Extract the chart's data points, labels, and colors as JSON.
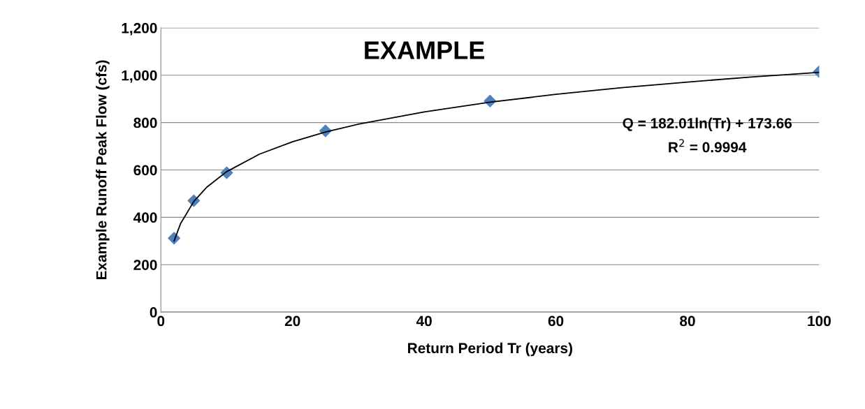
{
  "chart_data": {
    "type": "scatter",
    "title": "EXAMPLE",
    "xlabel": "Return Period Tr (years)",
    "ylabel": "Example Runoff Peak Flow (cfs)",
    "xlim": [
      0,
      100
    ],
    "xticks": [
      0,
      20,
      40,
      60,
      80,
      100
    ],
    "ylim": [
      0,
      1200
    ],
    "yticks": [
      0,
      200,
      400,
      600,
      800,
      {
        "value": 1000,
        "label": "1,000"
      },
      {
        "value": 1200,
        "label": "1,200"
      }
    ],
    "grid": "y",
    "legend": false,
    "series": [
      {
        "type": "line",
        "color": "#000000",
        "marker": "none",
        "x": [
          2,
          3,
          5,
          7,
          10,
          15,
          20,
          25,
          30,
          40,
          50,
          60,
          70,
          80,
          90,
          100
        ],
        "values": [
          300,
          374,
          467,
          528,
          593,
          667,
          719,
          760,
          793,
          845,
          886,
          919,
          947,
          971,
          993,
          1012
        ]
      },
      {
        "color": "#4f81bd",
        "marker": "diamond",
        "x": [
          2,
          5,
          10,
          25,
          50,
          100
        ],
        "values": [
          312,
          470,
          588,
          765,
          891,
          1015
        ]
      }
    ],
    "annotations": [
      "Q = 182.01ln(Tr) + 173.66",
      "R$^{2}$ = 0.9994"
    ]
  }
}
